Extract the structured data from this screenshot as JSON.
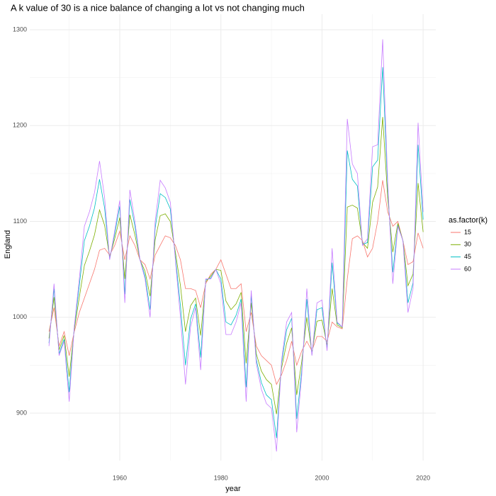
{
  "chart_data": {
    "type": "line",
    "title": "A k value of 30 is a nice balance of changing a lot vs not changing much",
    "x_label": "year",
    "y_label": "England",
    "legend_title": "as.factor(k)",
    "legend_position": "right",
    "grid": true,
    "x": [
      1946,
      1947,
      1948,
      1949,
      1950,
      1951,
      1952,
      1953,
      1954,
      1955,
      1956,
      1957,
      1958,
      1959,
      1960,
      1961,
      1962,
      1963,
      1964,
      1965,
      1966,
      1967,
      1968,
      1969,
      1970,
      1971,
      1972,
      1973,
      1974,
      1975,
      1976,
      1977,
      1978,
      1979,
      1980,
      1981,
      1982,
      1983,
      1984,
      1985,
      1986,
      1987,
      1988,
      1989,
      1990,
      1991,
      1992,
      1993,
      1994,
      1995,
      1996,
      1997,
      1998,
      1999,
      2000,
      2001,
      2002,
      2003,
      2004,
      2005,
      2006,
      2007,
      2008,
      2009,
      2010,
      2011,
      2012,
      2013,
      2014,
      2015,
      2016,
      2017,
      2018,
      2019,
      2020
    ],
    "series": [
      {
        "name": "15",
        "color": "#F8766D",
        "values": [
          985,
          1010,
          970,
          985,
          960,
          985,
          1005,
          1020,
          1035,
          1050,
          1070,
          1072,
          1065,
          1075,
          1090,
          1060,
          1085,
          1075,
          1060,
          1055,
          1040,
          1065,
          1075,
          1085,
          1083,
          1075,
          1060,
          1030,
          1030,
          1028,
          1010,
          1035,
          1045,
          1050,
          1060,
          1045,
          1030,
          1030,
          1035,
          985,
          1005,
          970,
          960,
          955,
          950,
          930,
          940,
          955,
          975,
          950,
          965,
          975,
          965,
          980,
          980,
          975,
          995,
          990,
          988,
          1040,
          1082,
          1085,
          1080,
          1063,
          1072,
          1100,
          1143,
          1110,
          1095,
          1100,
          1080,
          1055,
          1058,
          1088,
          1072
        ]
      },
      {
        "name": "30",
        "color": "#7CAE00",
        "values": [
          978,
          1021,
          966,
          981,
          938,
          987,
          1021,
          1054,
          1069,
          1086,
          1112,
          1096,
          1063,
          1082,
          1104,
          1040,
          1107,
          1086,
          1060,
          1048,
          1022,
          1081,
          1106,
          1108,
          1100,
          1068,
          1033,
          985,
          1012,
          1020,
          981,
          1037,
          1043,
          1050,
          1049,
          1017,
          1008,
          1014,
          1026,
          952,
          1015,
          962,
          944,
          935,
          930,
          899,
          947,
          973,
          989,
          919,
          954,
          1000,
          963,
          996,
          997,
          971,
          1030,
          992,
          989,
          1115,
          1117,
          1114,
          1078,
          1072,
          1120,
          1136,
          1209,
          1124,
          1068,
          1098,
          1080,
          1033,
          1045,
          1140,
          1089
        ]
      },
      {
        "name": "45",
        "color": "#00BFC4",
        "values": [
          973,
          1030,
          962,
          977,
          922,
          989,
          1033,
          1080,
          1095,
          1114,
          1144,
          1114,
          1061,
          1087,
          1116,
          1024,
          1123,
          1095,
          1060,
          1043,
          1008,
          1093,
          1129,
          1125,
          1113,
          1063,
          1012,
          950,
          998,
          1014,
          958,
          1039,
          1041,
          1050,
          1040,
          995,
          992,
          1002,
          1019,
          927,
          1023,
          956,
          932,
          919,
          914,
          874,
          952,
          987,
          999,
          894,
          945,
          1019,
          961,
          1008,
          1010,
          967,
          1057,
          994,
          990,
          1174,
          1144,
          1137,
          1076,
          1078,
          1157,
          1164,
          1261,
          1134,
          1047,
          1096,
          1080,
          1015,
          1036,
          1180,
          1102
        ]
      },
      {
        "name": "60",
        "color": "#C77CFF",
        "values": [
          970,
          1035,
          960,
          975,
          912,
          990,
          1040,
          1095,
          1110,
          1130,
          1163,
          1125,
          1060,
          1090,
          1122,
          1015,
          1133,
          1100,
          1060,
          1040,
          1000,
          1100,
          1143,
          1135,
          1120,
          1060,
          1000,
          930,
          990,
          1010,
          945,
          1040,
          1040,
          1050,
          1035,
          982,
          982,
          995,
          1015,
          912,
          1028,
          952,
          925,
          910,
          905,
          860,
          955,
          995,
          1005,
          880,
          940,
          1030,
          960,
          1015,
          1018,
          965,
          1072,
          995,
          990,
          1207,
          1160,
          1150,
          1075,
          1082,
          1178,
          1180,
          1290,
          1140,
          1035,
          1095,
          1080,
          1005,
          1030,
          1203,
          1110
        ]
      }
    ],
    "xlim": [
      1942.2,
      2022.5
    ],
    "xticks": [
      1960,
      1980,
      2000,
      2020
    ],
    "ylim": [
      850.5,
      1316.3
    ],
    "yticks": [
      900,
      1000,
      1100,
      1200,
      1300
    ]
  }
}
